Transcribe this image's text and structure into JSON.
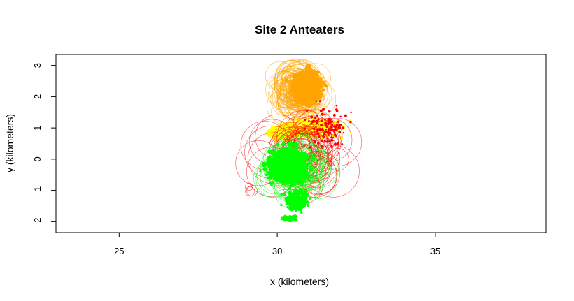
{
  "chart_data": {
    "type": "scatter",
    "title": "Site 2 Anteaters",
    "xlabel": "x (kilometers)",
    "ylabel": "y (kilometers)",
    "xlim": [
      23,
      38.5
    ],
    "ylim": [
      -2.35,
      3.35
    ],
    "xticks": [
      25,
      30,
      35
    ],
    "yticks": [
      -2,
      -1,
      0,
      1,
      2,
      3
    ],
    "grid": false,
    "legend": "none",
    "colors": {
      "orange": "#FFA500",
      "yellow": "#FFFF00",
      "red": "#FF0000",
      "green": "#00FF00"
    },
    "series": [
      {
        "color_key": "orange",
        "center": [
          30.95,
          2.3
        ],
        "spread": [
          0.45,
          0.45
        ],
        "clusters": [
          {
            "x": 30.95,
            "y": 2.3,
            "n": 700,
            "sx": 0.42,
            "sy": 0.45,
            "r": [
              1,
              4
            ]
          },
          {
            "x": 30.7,
            "y": 2.2,
            "n": 120,
            "sx": 0.5,
            "sy": 0.55,
            "r": [
              6,
              30
            ],
            "outline": true
          }
        ]
      },
      {
        "color_key": "yellow",
        "center": [
          30.8,
          1.05
        ],
        "spread": [
          0.9,
          0.35
        ],
        "clusters": [
          {
            "x": 31.2,
            "y": 1.0,
            "n": 250,
            "sx": 0.8,
            "sy": 0.3,
            "r": [
              1,
              3
            ]
          },
          {
            "x": 30.3,
            "y": 0.9,
            "n": 60,
            "sx": 0.6,
            "sy": 0.2,
            "r": [
              2,
              6
            ]
          }
        ]
      },
      {
        "color_key": "red",
        "center": [
          31.3,
          0.6
        ],
        "spread": [
          0.9,
          0.9
        ],
        "clusters": [
          {
            "x": 31.6,
            "y": 1.0,
            "n": 120,
            "sx": 0.6,
            "sy": 0.7,
            "r": [
              1,
              2
            ]
          },
          {
            "x": 30.8,
            "y": 0.2,
            "n": 70,
            "sx": 1.0,
            "sy": 0.9,
            "r": [
              12,
              40
            ],
            "outline": true
          },
          {
            "x": 29.2,
            "y": -1.0,
            "n": 3,
            "sx": 0.1,
            "sy": 0.2,
            "r": [
              5,
              10
            ],
            "outline": true
          }
        ]
      },
      {
        "color_key": "green",
        "center": [
          30.4,
          -0.35
        ],
        "spread": [
          0.6,
          0.6
        ],
        "clusters": [
          {
            "x": 30.3,
            "y": -0.2,
            "n": 900,
            "sx": 0.55,
            "sy": 0.5,
            "r": [
              1,
              4
            ]
          },
          {
            "x": 30.6,
            "y": -1.3,
            "n": 200,
            "sx": 0.35,
            "sy": 0.35,
            "r": [
              1,
              3
            ]
          },
          {
            "x": 30.4,
            "y": -1.9,
            "n": 40,
            "sx": 0.2,
            "sy": 0.1,
            "r": [
              1,
              3
            ]
          },
          {
            "x": 30.6,
            "y": -0.3,
            "n": 90,
            "sx": 0.7,
            "sy": 0.6,
            "r": [
              6,
              28
            ],
            "outline": true
          }
        ]
      }
    ]
  }
}
